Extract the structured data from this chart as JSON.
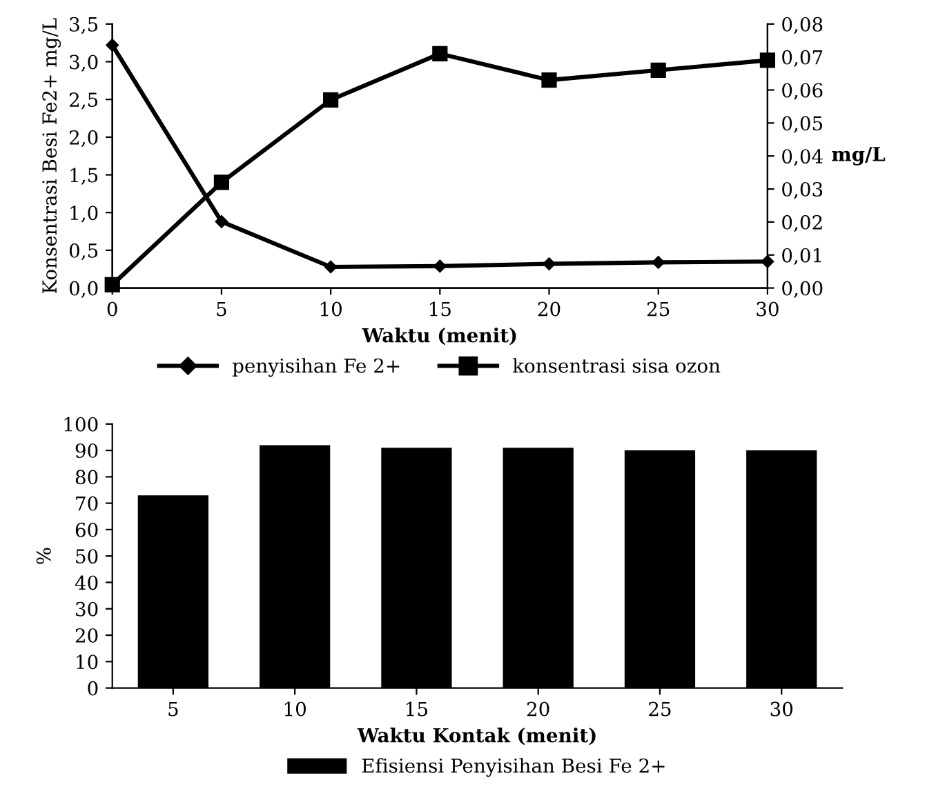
{
  "chart_data": [
    {
      "type": "line",
      "xlabel": "Waktu (menit)",
      "ylabel": "Konsentrasi Besi Fe2+ mg/L",
      "y2label": "mg/L",
      "x": [
        0,
        5,
        10,
        15,
        20,
        25,
        30
      ],
      "xlim": [
        0,
        30
      ],
      "xticks": [
        0,
        5,
        10,
        15,
        20,
        25,
        30
      ],
      "ylim": [
        0,
        3.5
      ],
      "yticks": [
        {
          "value": 0,
          "label": "0,0"
        },
        {
          "value": 0.5,
          "label": "0,5"
        },
        {
          "value": 1,
          "label": "1,0"
        },
        {
          "value": 1.5,
          "label": "1,5"
        },
        {
          "value": 2,
          "label": "2,0"
        },
        {
          "value": 2.5,
          "label": "2,5"
        },
        {
          "value": 3,
          "label": "3,0"
        },
        {
          "value": 3.5,
          "label": "3,5"
        }
      ],
      "y2lim": [
        0,
        0.08
      ],
      "y2ticks": [
        {
          "value": 0,
          "label": "0,00"
        },
        {
          "value": 0.01,
          "label": "0,01"
        },
        {
          "value": 0.02,
          "label": "0,02"
        },
        {
          "value": 0.03,
          "label": "0,03"
        },
        {
          "value": 0.04,
          "label": "0,04"
        },
        {
          "value": 0.05,
          "label": "0,05"
        },
        {
          "value": 0.06,
          "label": "0,06"
        },
        {
          "value": 0.07,
          "label": "0,07"
        },
        {
          "value": 0.08,
          "label": "0,08"
        }
      ],
      "legend": "bottom",
      "grid": false,
      "series": [
        {
          "name": "penyisihan Fe 2+",
          "color": "#000000",
          "marker": "diamond",
          "values": [
            3.22,
            0.88,
            0.28,
            0.29,
            0.32,
            0.34,
            0.35
          ]
        },
        {
          "name": "konsentrasi sisa ozon",
          "color": "#000000",
          "marker": "square",
          "axis": "y2",
          "values": [
            0.001,
            0.032,
            0.057,
            0.071,
            0.063,
            0.066,
            0.069
          ]
        }
      ]
    },
    {
      "type": "bar",
      "xlabel": "Waktu Kontak (menit)",
      "ylabel": "%",
      "categories": [
        "5",
        "10",
        "15",
        "20",
        "25",
        "30"
      ],
      "ylim": [
        0,
        100
      ],
      "yticks": [
        0,
        10,
        20,
        30,
        40,
        50,
        60,
        70,
        80,
        90,
        100
      ],
      "legend": "bottom",
      "grid": false,
      "series": [
        {
          "name": "Efisiensi Penyisihan Besi Fe 2+",
          "color": "#000000",
          "values": [
            73,
            92,
            91,
            91,
            90,
            90
          ]
        }
      ]
    }
  ]
}
